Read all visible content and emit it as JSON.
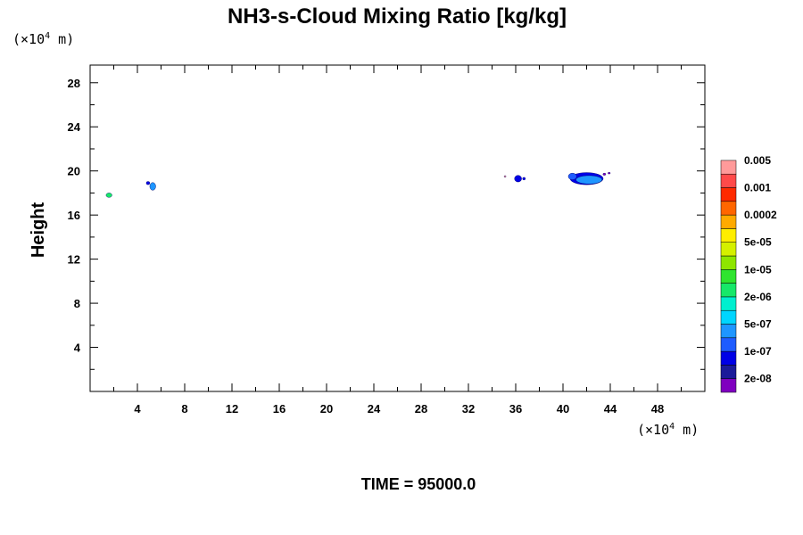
{
  "chart_data": {
    "type": "contour",
    "title": "NH3-s-Cloud Mixing Ratio [kg/kg]",
    "ylabel": "Height",
    "x_unit": {
      "prefix": "(×10",
      "exp": "4",
      "suffix": " m)"
    },
    "y_unit": {
      "prefix": "(×10",
      "exp": "4",
      "suffix": " m)"
    },
    "xlim": [
      0,
      52
    ],
    "ylim": [
      0,
      29.6
    ],
    "x_major_ticks": [
      4,
      8,
      12,
      16,
      20,
      24,
      28,
      32,
      36,
      40,
      44,
      48
    ],
    "x_tick_labels": [
      "4",
      "8",
      "12",
      "16",
      "20",
      "24",
      "28",
      "32",
      "36",
      "40",
      "44",
      "48"
    ],
    "y_major_ticks": [
      4,
      8,
      12,
      16,
      20,
      24,
      28
    ],
    "y_tick_labels": [
      "4",
      "8",
      "12",
      "16",
      "20",
      "24",
      "28"
    ],
    "minor_step": 2,
    "time_label": "TIME = 95000.0",
    "colorbar": {
      "colors": [
        "#7f00bf",
        "#1b1b9a",
        "#0000e6",
        "#1e5cff",
        "#1e96ff",
        "#00d5ff",
        "#00efcf",
        "#17e869",
        "#2fe42f",
        "#8ee600",
        "#d5f000",
        "#ffee00",
        "#ffaa00",
        "#ff6600",
        "#ff2a00",
        "#ff4a4a",
        "#ff9a9a"
      ],
      "labels": [
        "2e-08",
        "1e-07",
        "5e-07",
        "2e-06",
        "1e-05",
        "5e-05",
        "0.0002",
        "0.001",
        "0.005"
      ]
    },
    "features": [
      {
        "x": 1.6,
        "y": 17.8,
        "rx": 0.25,
        "ry": 0.2,
        "color": "#17e869"
      },
      {
        "x": 4.9,
        "y": 18.9,
        "rx": 0.15,
        "ry": 0.15,
        "color": "#0000e6"
      },
      {
        "x": 5.3,
        "y": 18.6,
        "rx": 0.25,
        "ry": 0.35,
        "color": "#1e96ff"
      },
      {
        "x": 35.1,
        "y": 19.5,
        "rx": 0.08,
        "ry": 0.08,
        "color": "#ff9a9a"
      },
      {
        "x": 36.2,
        "y": 19.3,
        "rx": 0.3,
        "ry": 0.3,
        "color": "#0000e6"
      },
      {
        "x": 36.7,
        "y": 19.3,
        "rx": 0.12,
        "ry": 0.12,
        "color": "#0000e6"
      },
      {
        "x": 42.0,
        "y": 19.3,
        "rx": 1.4,
        "ry": 0.55,
        "color": "#0000e6"
      },
      {
        "x": 42.2,
        "y": 19.2,
        "rx": 1.1,
        "ry": 0.38,
        "color": "#1e96ff"
      },
      {
        "x": 40.8,
        "y": 19.5,
        "rx": 0.35,
        "ry": 0.3,
        "color": "#1e5cff"
      },
      {
        "x": 43.5,
        "y": 19.7,
        "rx": 0.12,
        "ry": 0.1,
        "color": "#7f00bf"
      },
      {
        "x": 43.9,
        "y": 19.8,
        "rx": 0.1,
        "ry": 0.08,
        "color": "#7f00bf"
      }
    ]
  }
}
